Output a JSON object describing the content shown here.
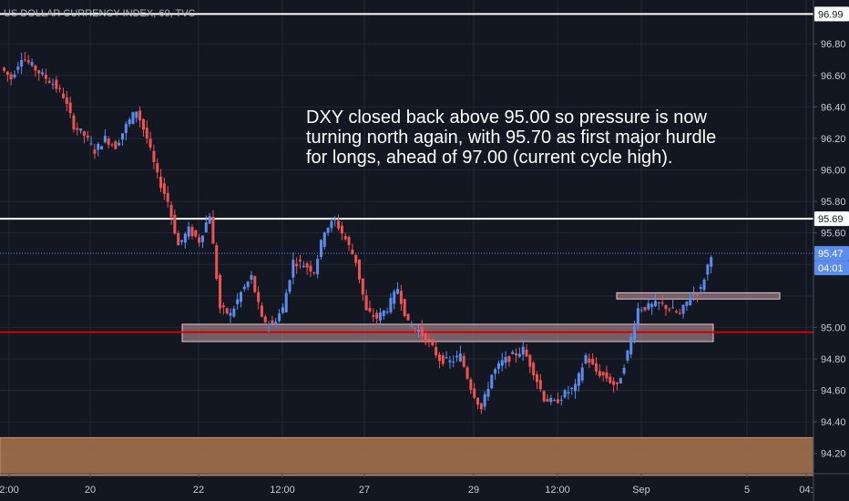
{
  "chart_title": "US DOLLAR CURRENCY INDEX, 60, TVC",
  "annotation": {
    "lines": [
      "DXY closed back above 95.00 so pressure is now",
      "turning north again, with 95.70 as first major hurdle",
      "for longs, ahead of 97.00 (current cycle high)."
    ]
  },
  "price_tags": {
    "top_level": "96.99",
    "resistance_level": "95.69",
    "last_price": "95.47",
    "countdown": "04:01"
  },
  "colors": {
    "background": "#131722",
    "up": "#5b8def",
    "down": "#ef5350",
    "level_line": "#ffffff",
    "support_line": "#d50000",
    "zone_fill": "#c39aa0",
    "demand_zone": "#a9774f",
    "last_price_line": "#5b8def"
  },
  "chart_data": {
    "type": "line",
    "title": "US DOLLAR CURRENCY INDEX, 60, TVC",
    "ylim": [
      94.1,
      97.05
    ],
    "yticks": [
      "96.80",
      "96.60",
      "96.40",
      "96.20",
      "96.00",
      "95.80",
      "95.60",
      "95.00",
      "94.80",
      "94.60",
      "94.40",
      "94.20"
    ],
    "xticks": [
      "2:00",
      "20",
      "22",
      "12:00",
      "27",
      "29",
      "12:00",
      "Sep",
      "5",
      "04:"
    ],
    "x_range": [
      0,
      880
    ],
    "grid": true,
    "series": [
      {
        "values": [
          96.65,
          96.58,
          96.72,
          96.66,
          96.6,
          96.55,
          96.47,
          96.28,
          96.22,
          96.12,
          96.2,
          96.15,
          96.28,
          96.38,
          96.2,
          95.96,
          95.8,
          95.52,
          95.62,
          95.55,
          95.72,
          95.12,
          95.08,
          95.22,
          95.32,
          95.05,
          95.02,
          95.12,
          95.42,
          95.4,
          95.36,
          95.62,
          95.68,
          95.56,
          95.42,
          95.1,
          95.06,
          95.12,
          95.25,
          95.02,
          94.98,
          94.9,
          94.8,
          94.78,
          94.82,
          94.62,
          94.48,
          94.7,
          94.78,
          94.82,
          94.86,
          94.72,
          94.55,
          94.52,
          94.58,
          94.62,
          94.82,
          94.72,
          94.68,
          94.62,
          94.84,
          95.12,
          95.13,
          95.15,
          95.12,
          95.08,
          95.2,
          95.24,
          95.47
        ]
      }
    ],
    "levels": [
      {
        "value": 96.99,
        "role": "resistance"
      },
      {
        "value": 95.69,
        "role": "resistance"
      },
      {
        "value": 94.97,
        "role": "support"
      },
      {
        "value": 95.47,
        "role": "last price"
      }
    ],
    "zones": [
      {
        "from": 94.91,
        "to": 95.02,
        "x_start": 200,
        "x_end": 783
      },
      {
        "from": 95.18,
        "to": 95.22,
        "x_start": 677,
        "x_end": 856
      },
      {
        "from": 94.06,
        "to": 94.3,
        "x_start": 0,
        "x_end": 893
      }
    ]
  }
}
